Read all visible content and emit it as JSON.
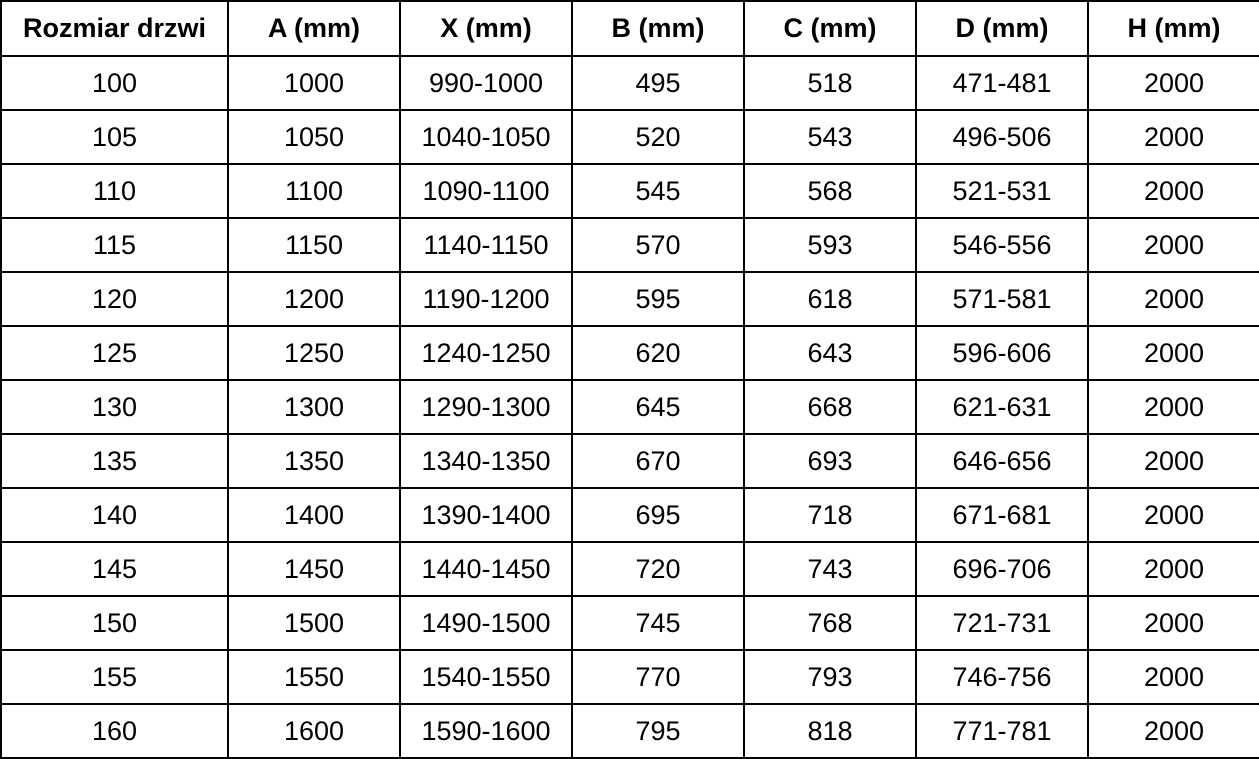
{
  "table": {
    "name": "door-size-specification-table",
    "headers": [
      "Rozmiar drzwi",
      "A (mm)",
      "X (mm)",
      "B (mm)",
      "C (mm)",
      "D (mm)",
      "H (mm)"
    ],
    "rows": [
      [
        "100",
        "1000",
        "990-1000",
        "495",
        "518",
        "471-481",
        "2000"
      ],
      [
        "105",
        "1050",
        "1040-1050",
        "520",
        "543",
        "496-506",
        "2000"
      ],
      [
        "110",
        "1100",
        "1090-1100",
        "545",
        "568",
        "521-531",
        "2000"
      ],
      [
        "115",
        "1150",
        "1140-1150",
        "570",
        "593",
        "546-556",
        "2000"
      ],
      [
        "120",
        "1200",
        "1190-1200",
        "595",
        "618",
        "571-581",
        "2000"
      ],
      [
        "125",
        "1250",
        "1240-1250",
        "620",
        "643",
        "596-606",
        "2000"
      ],
      [
        "130",
        "1300",
        "1290-1300",
        "645",
        "668",
        "621-631",
        "2000"
      ],
      [
        "135",
        "1350",
        "1340-1350",
        "670",
        "693",
        "646-656",
        "2000"
      ],
      [
        "140",
        "1400",
        "1390-1400",
        "695",
        "718",
        "671-681",
        "2000"
      ],
      [
        "145",
        "1450",
        "1440-1450",
        "720",
        "743",
        "696-706",
        "2000"
      ],
      [
        "150",
        "1500",
        "1490-1500",
        "745",
        "768",
        "721-731",
        "2000"
      ],
      [
        "155",
        "1550",
        "1540-1550",
        "770",
        "793",
        "746-756",
        "2000"
      ],
      [
        "160",
        "1600",
        "1590-1600",
        "795",
        "818",
        "771-781",
        "2000"
      ]
    ],
    "colors": {
      "border": "#000000",
      "text": "#000000",
      "background": "#ffffff"
    }
  }
}
